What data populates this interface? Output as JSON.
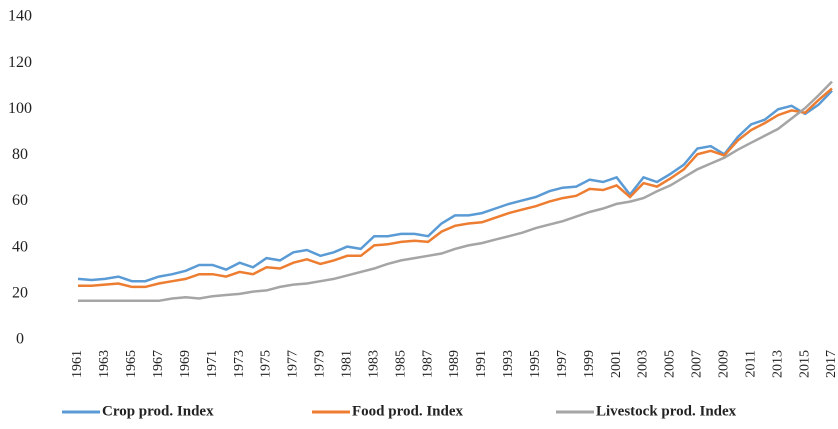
{
  "chart_data": {
    "type": "line",
    "categories": [
      "1961",
      null,
      "1963",
      null,
      "1965",
      null,
      "1967",
      null,
      "1969",
      null,
      "1971",
      null,
      "1973",
      null,
      "1975",
      null,
      "1977",
      null,
      "1979",
      null,
      "1981",
      null,
      "1983",
      null,
      "1985",
      null,
      "1987",
      null,
      "1989",
      null,
      "1991",
      null,
      "1993",
      null,
      "1995",
      null,
      "1997",
      null,
      "1999",
      null,
      "2001",
      null,
      "2003",
      null,
      "2005",
      null,
      "2007",
      null,
      "2009",
      null,
      "2011",
      null,
      "2013",
      null,
      "2015",
      null,
      "2017"
    ],
    "series": [
      {
        "name": "Crop prod. Index",
        "color": "#5b9bd5",
        "values": [
          26.5,
          26,
          26.5,
          27.5,
          25.5,
          25.5,
          27.5,
          28.5,
          30,
          32.5,
          32.5,
          30.5,
          33.5,
          31.5,
          35.5,
          34.5,
          38,
          39,
          36.5,
          38,
          40.5,
          39.5,
          45,
          45,
          46,
          46,
          45,
          50.5,
          54,
          54,
          55,
          57,
          59,
          60.5,
          62,
          64.5,
          66,
          66.5,
          69.5,
          68.5,
          70.5,
          63,
          70.5,
          68.5,
          72,
          76,
          83,
          84,
          80.5,
          88,
          93.5,
          95.5,
          100,
          101.5,
          98,
          102,
          108
        ]
      },
      {
        "name": "Food prod. Index",
        "color": "#ed7d31",
        "values": [
          23.5,
          23.5,
          24,
          24.5,
          23,
          23,
          24.5,
          25.5,
          26.5,
          28.5,
          28.5,
          27.5,
          29.5,
          28.5,
          31.5,
          31,
          33.5,
          35,
          33,
          34.5,
          36.5,
          36.5,
          41,
          41.5,
          42.5,
          43,
          42.5,
          47,
          49.5,
          50.5,
          51,
          53,
          55,
          56.5,
          58,
          60,
          61.5,
          62.5,
          65.5,
          65,
          67,
          62,
          68,
          66.5,
          70,
          74,
          80.5,
          82,
          80,
          86.5,
          91,
          94,
          97.5,
          99.5,
          98.5,
          104,
          109
        ]
      },
      {
        "name": "Livestock prod. Index",
        "color": "#a5a5a5",
        "values": [
          17,
          17,
          17,
          17,
          17,
          17,
          17,
          18,
          18.5,
          18,
          19,
          19.5,
          20,
          21,
          21.5,
          23,
          24,
          24.5,
          25.5,
          26.5,
          28,
          29.5,
          31,
          33,
          34.5,
          35.5,
          36.5,
          37.5,
          39.5,
          41,
          42,
          43.5,
          45,
          46.5,
          48.5,
          50,
          51.5,
          53.5,
          55.5,
          57,
          59,
          60,
          61.5,
          64.5,
          67,
          70.5,
          74,
          76.5,
          79,
          82.5,
          85.5,
          88.5,
          91.5,
          96,
          100.5,
          106,
          112
        ]
      }
    ],
    "ylim": [
      0,
      140
    ],
    "yticks": [
      0,
      20,
      40,
      60,
      80,
      100,
      120,
      140
    ],
    "grid": false,
    "legend": "bottom"
  }
}
